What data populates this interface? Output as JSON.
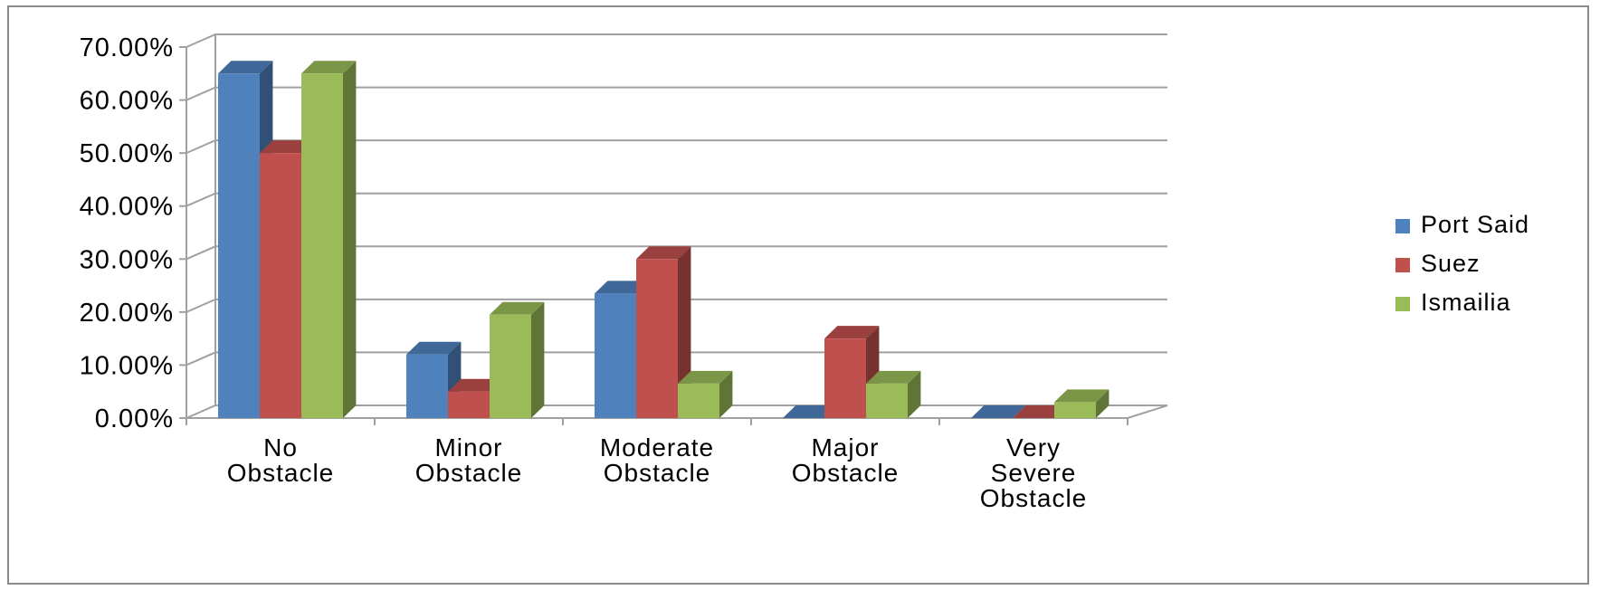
{
  "chart_data": {
    "type": "bar",
    "style": "3d-clustered-column",
    "categories": [
      [
        "No",
        "Obstacle"
      ],
      [
        "Minor",
        "Obstacle"
      ],
      [
        "Moderate",
        "Obstacle"
      ],
      [
        "Major",
        "Obstacle"
      ],
      [
        "Very",
        "Severe",
        "Obstacle"
      ]
    ],
    "series": [
      {
        "name": "Port Said",
        "color": "#4F81BD",
        "values": [
          65.0,
          12.0,
          23.5,
          0.0,
          0.0
        ]
      },
      {
        "name": "Suez",
        "color": "#C0504D",
        "values": [
          50.0,
          5.0,
          30.0,
          15.0,
          0.0
        ]
      },
      {
        "name": "Ismailia",
        "color": "#9BBB59",
        "values": [
          65.0,
          19.5,
          6.5,
          6.5,
          3.0
        ]
      }
    ],
    "y_ticks": [
      "0.00%",
      "10.00%",
      "20.00%",
      "30.00%",
      "40.00%",
      "50.00%",
      "60.00%",
      "70.00%"
    ],
    "ylim": [
      0,
      70
    ],
    "grid": true,
    "legend_position": "right"
  }
}
